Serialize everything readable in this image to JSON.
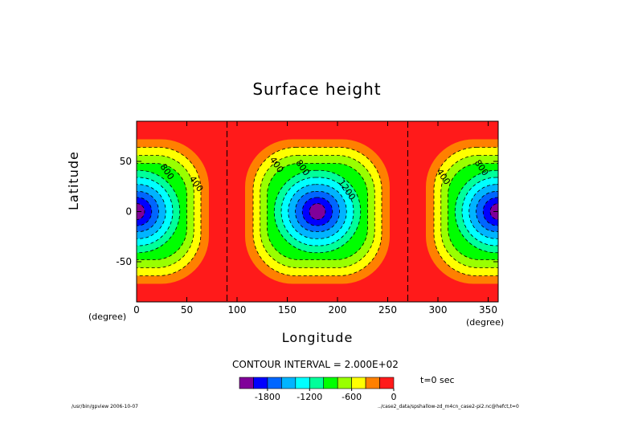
{
  "chart_data": {
    "type": "contour",
    "title": "Surface height",
    "xlabel": "Longitude",
    "ylabel": "Latitude",
    "x_unit": "(degree)",
    "y_unit": "(degree)",
    "xlim": [
      0,
      360
    ],
    "ylim": [
      -90,
      90
    ],
    "x_ticks": [
      0,
      50,
      100,
      150,
      200,
      250,
      300,
      350
    ],
    "y_ticks": [
      -50,
      0,
      50
    ],
    "contour_interval_text": "CONTOUR INTERVAL = 2.000E+02",
    "contour_interval": 200,
    "field": {
      "description": "anomaly lows centered on equator",
      "centers_lon": [
        0,
        180,
        360
      ],
      "center_lat": 0,
      "min_value": -1900,
      "max_value": 0
    },
    "contour_labels": [
      {
        "text": "800",
        "lon": 28,
        "lat": 38
      },
      {
        "text": "400",
        "lon": 57,
        "lat": 26
      },
      {
        "text": "400",
        "lon": 137,
        "lat": 45
      },
      {
        "text": "800",
        "lon": 163,
        "lat": 42
      },
      {
        "text": "1200",
        "lon": 207,
        "lat": 20
      },
      {
        "text": "400",
        "lon": 303,
        "lat": 33
      },
      {
        "text": "800",
        "lon": 341,
        "lat": 42
      }
    ],
    "dashed_meridians": [
      90,
      270
    ],
    "colorbar": {
      "colors": [
        "#800099",
        "#0000ff",
        "#0066ff",
        "#00b4ff",
        "#00ffff",
        "#00ff9a",
        "#00ff00",
        "#99ff00",
        "#ffff00",
        "#ff8000",
        "#ff1a1a"
      ],
      "tick_labels": [
        "-1800",
        "-1200",
        "-600",
        "0"
      ]
    },
    "annotation_time": "t=0 sec",
    "footer_left": "/usr/bin/gpview  2006-10-07",
    "footer_right": "../case2_data/spshallow-zd_m4cn_case2-pi2.nc@hefct,t=0"
  }
}
